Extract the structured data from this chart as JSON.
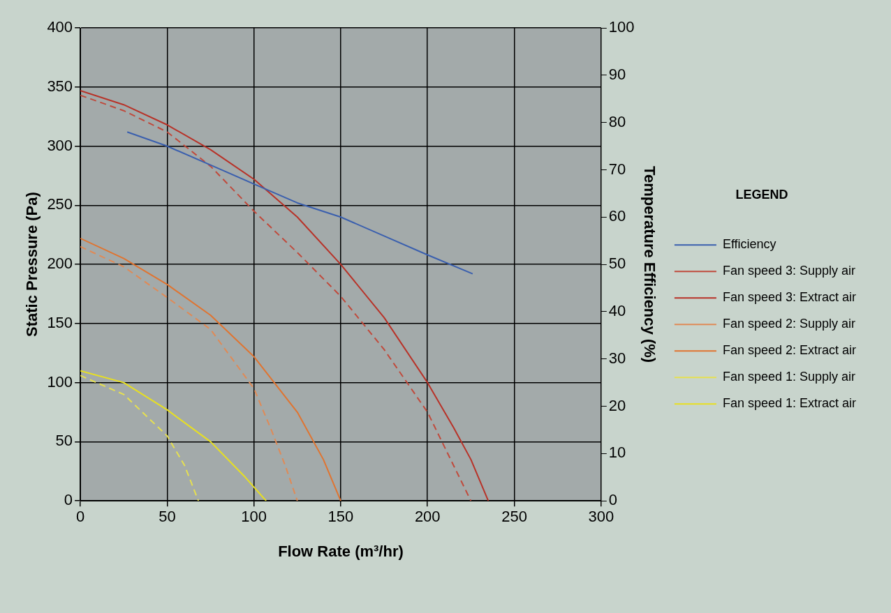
{
  "chart_data": {
    "type": "line",
    "xlabel": "Flow Rate (m³/hr)",
    "ylabel": "Static Pressure (Pa)",
    "y2label": "Temperature Efficiency (%)",
    "legend_title": "LEGEND",
    "legend": "right",
    "grid": true,
    "marker": "none",
    "xlim": [
      0,
      300
    ],
    "xticks": [
      0,
      50,
      100,
      150,
      200,
      250,
      300
    ],
    "ylim": [
      0,
      400
    ],
    "yticks": [
      0,
      50,
      100,
      150,
      200,
      250,
      300,
      350,
      400
    ],
    "y2lim": [
      0,
      100
    ],
    "y2ticks": [
      0,
      10,
      20,
      30,
      40,
      50,
      60,
      70,
      80,
      90,
      100
    ],
    "series": [
      {
        "name": "Efficiency",
        "color": "#3a5fae",
        "axis": "y2",
        "line_style": "solid",
        "x": [
          27,
          50,
          75,
          100,
          125,
          150,
          175,
          200,
          226
        ],
        "values": [
          78,
          75,
          71,
          67,
          63,
          60,
          56,
          52,
          48
        ]
      },
      {
        "name": "Fan speed 3: Supply air",
        "color": "#c04a3c",
        "line_style": "dashed",
        "x": [
          0,
          25,
          50,
          75,
          100,
          125,
          150,
          175,
          200,
          210,
          220,
          225
        ],
        "values": [
          343,
          330,
          312,
          283,
          245,
          210,
          173,
          128,
          75,
          45,
          15,
          0
        ]
      },
      {
        "name": "Fan speed 3: Extract air",
        "color": "#b83228",
        "line_style": "solid",
        "x": [
          0,
          25,
          50,
          75,
          100,
          125,
          150,
          175,
          200,
          215,
          225,
          235
        ],
        "values": [
          347,
          335,
          318,
          297,
          272,
          240,
          200,
          155,
          100,
          62,
          35,
          0
        ]
      },
      {
        "name": "Fan speed 2: Supply air",
        "color": "#e08a56",
        "line_style": "dashed",
        "x": [
          0,
          25,
          50,
          75,
          100,
          110,
          118,
          125
        ],
        "values": [
          215,
          198,
          172,
          145,
          95,
          60,
          30,
          0
        ]
      },
      {
        "name": "Fan speed 2: Extract air",
        "color": "#e07430",
        "line_style": "solid",
        "x": [
          0,
          25,
          50,
          75,
          100,
          125,
          140,
          150
        ],
        "values": [
          222,
          205,
          183,
          157,
          122,
          75,
          35,
          0
        ]
      },
      {
        "name": "Fan speed 1: Supply air",
        "color": "#e6e050",
        "line_style": "dashed",
        "x": [
          0,
          25,
          50,
          60,
          68
        ],
        "values": [
          106,
          90,
          55,
          30,
          0
        ]
      },
      {
        "name": "Fan speed 1: Extract air",
        "color": "#e8e020",
        "line_style": "solid",
        "x": [
          0,
          25,
          50,
          75,
          95,
          107
        ],
        "values": [
          110,
          100,
          77,
          50,
          20,
          0
        ]
      }
    ]
  }
}
